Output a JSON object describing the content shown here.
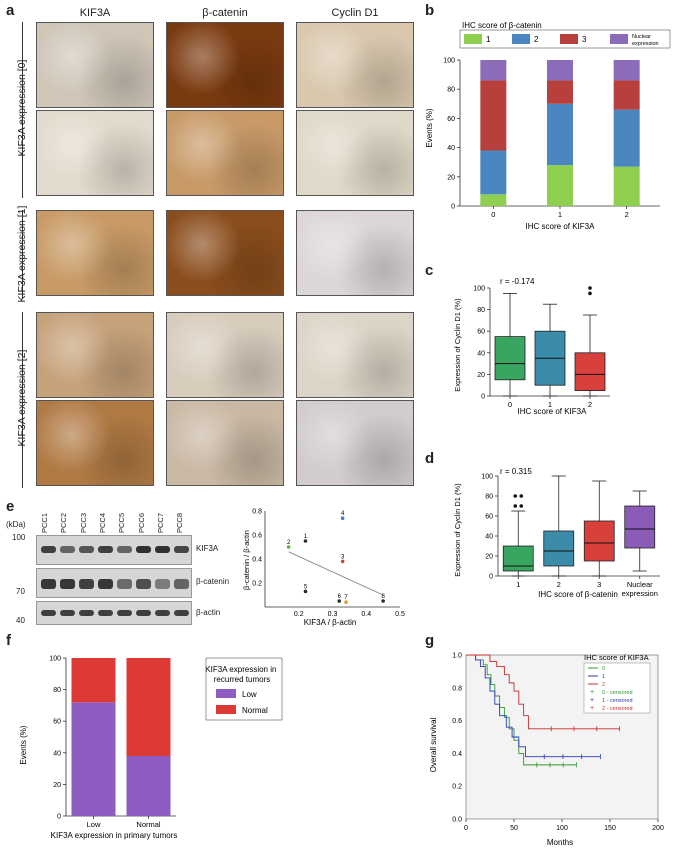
{
  "panels": {
    "a": "a",
    "b": "b",
    "c": "c",
    "d": "d",
    "e": "e",
    "f": "f",
    "g": "g"
  },
  "panel_a": {
    "columns": [
      "KIF3A",
      "β-catenin",
      "Cyclin D1"
    ],
    "rows": [
      "KIF3A expression [0]",
      "KIF3A expression [1]",
      "KIF3A expression [2]"
    ],
    "tiles": [
      [
        "#cfc6b8",
        "#7a3a10",
        "#d9c8ae"
      ],
      [
        "#e2dacc",
        "#c89a68",
        "#e0d8c8"
      ],
      [
        "#c89a66",
        "#8a4d1c",
        "#dcd6d8"
      ],
      [
        "#c6a27a",
        "#d8ccbc",
        "#dcd4c6"
      ],
      [
        "#b07a44",
        "#c9b8a4",
        "#d2cccc"
      ]
    ]
  },
  "panel_e_blot": {
    "kda_label": "(kDa)",
    "lanes": [
      "PCC1",
      "PCC2",
      "PCC3",
      "PCC4",
      "PCC5",
      "PCC6",
      "PCC7",
      "PCC8"
    ],
    "bands": [
      "KIF3A",
      "β-catenin",
      "β-actin"
    ],
    "markers": [
      "100",
      "70",
      "40"
    ]
  },
  "chart_data": [
    {
      "id": "b",
      "type": "bar",
      "stacked": true,
      "title": "IHC score of β-catenin",
      "legend": [
        "1",
        "2",
        "3",
        "Nuclear expression"
      ],
      "colors": [
        "#8fcf50",
        "#4a86c0",
        "#b8403c",
        "#8a6cb8"
      ],
      "categories": [
        "0",
        "1",
        "2"
      ],
      "series": [
        {
          "name": "1",
          "values": [
            8,
            28,
            27
          ]
        },
        {
          "name": "2",
          "values": [
            30,
            42,
            39
          ]
        },
        {
          "name": "3",
          "values": [
            48,
            16,
            20
          ]
        },
        {
          "name": "Nuclear expression",
          "values": [
            14,
            14,
            14
          ]
        }
      ],
      "xlabel": "IHC score of KIF3A",
      "ylabel": "Events (%)",
      "ylim": [
        0,
        100
      ],
      "yticks": [
        "0",
        "20",
        "40",
        "60",
        "80",
        "100"
      ]
    },
    {
      "id": "c",
      "type": "box",
      "annotation": "r = -0.174",
      "categories": [
        "0",
        "1",
        "2"
      ],
      "colors": [
        "#3aa560",
        "#3a8ca8",
        "#d8403c"
      ],
      "boxes": [
        {
          "min": 0,
          "q1": 15,
          "median": 30,
          "q3": 55,
          "max": 95,
          "outliers": []
        },
        {
          "min": 0,
          "q1": 10,
          "median": 35,
          "q3": 60,
          "max": 85,
          "outliers": []
        },
        {
          "min": 0,
          "q1": 5,
          "median": 20,
          "q3": 40,
          "max": 75,
          "outliers": [
            95,
            100
          ]
        }
      ],
      "xlabel": "IHC score of KIF3A",
      "ylabel": "Expression of Cyclin D1 (%)",
      "ylim": [
        0,
        100
      ],
      "yticks": [
        "0",
        "20",
        "40",
        "60",
        "80",
        "100"
      ]
    },
    {
      "id": "d",
      "type": "box",
      "annotation": "r = 0.315",
      "categories": [
        "1",
        "2",
        "3",
        "Nuclear expression"
      ],
      "colors": [
        "#3aa560",
        "#3a8ca8",
        "#d8403c",
        "#8a5cb8"
      ],
      "boxes": [
        {
          "min": 0,
          "q1": 5,
          "median": 10,
          "q3": 30,
          "max": 65,
          "outliers": [
            70,
            70,
            80,
            80
          ]
        },
        {
          "min": 0,
          "q1": 10,
          "median": 25,
          "q3": 45,
          "max": 100,
          "outliers": []
        },
        {
          "min": 0,
          "q1": 15,
          "median": 33,
          "q3": 55,
          "max": 95,
          "outliers": []
        },
        {
          "min": 5,
          "q1": 28,
          "median": 47,
          "q3": 70,
          "max": 85,
          "outliers": []
        }
      ],
      "xlabel": "IHC score of β-catenin",
      "ylabel": "Expression of Cyclin D1 (%)",
      "ylim": [
        0,
        100
      ],
      "yticks": [
        "0",
        "20",
        "40",
        "60",
        "80",
        "100"
      ]
    },
    {
      "id": "e",
      "type": "scatter",
      "points": [
        {
          "label": "1",
          "x": 0.22,
          "y": 0.55,
          "color": "#2a2a2a"
        },
        {
          "label": "2",
          "x": 0.17,
          "y": 0.5,
          "color": "#5ab040"
        },
        {
          "label": "3",
          "x": 0.33,
          "y": 0.38,
          "color": "#d8402c"
        },
        {
          "label": "4",
          "x": 0.33,
          "y": 0.74,
          "color": "#4a7ad8"
        },
        {
          "label": "5",
          "x": 0.22,
          "y": 0.13,
          "color": "#2a2a2a"
        },
        {
          "label": "6",
          "x": 0.32,
          "y": 0.05,
          "color": "#2a2a2a"
        },
        {
          "label": "7",
          "x": 0.34,
          "y": 0.04,
          "color": "#d8a030"
        },
        {
          "label": "8",
          "x": 0.45,
          "y": 0.05,
          "color": "#2a2a2a"
        }
      ],
      "trend": [
        [
          0.17,
          0.46
        ],
        [
          0.45,
          0.1
        ]
      ],
      "xlabel": "KIF3A / β-actin",
      "ylabel": "β-catenin / β-actin",
      "xlim": [
        0.1,
        0.5
      ],
      "ylim": [
        0,
        0.8
      ],
      "xticks": [
        "0.2",
        "0.3",
        "0.4",
        "0.5"
      ],
      "yticks": [
        "0.2",
        "0.4",
        "0.6",
        "0.8"
      ]
    },
    {
      "id": "f",
      "type": "bar",
      "stacked": true,
      "legend_title": "KIF3A expression in recurred tumors",
      "legend": [
        "Low",
        "Normal"
      ],
      "colors": [
        "#8e5cc0",
        "#dd3a36"
      ],
      "categories": [
        "Low",
        "Normal"
      ],
      "series": [
        {
          "name": "Low",
          "values": [
            72,
            38
          ]
        },
        {
          "name": "Normal",
          "values": [
            28,
            62
          ]
        }
      ],
      "xlabel": "KIF3A expression in primary tumors",
      "ylabel": "Events (%)",
      "ylim": [
        0,
        100
      ],
      "yticks": [
        "0",
        "20",
        "40",
        "60",
        "80",
        "100"
      ]
    },
    {
      "id": "g",
      "type": "line",
      "legend_title": "IHC score of KIF3A",
      "legend": [
        "0",
        "1",
        "2",
        "0 - censored",
        "1 - censored",
        "2 - censored"
      ],
      "colors": [
        "#2e9a2e",
        "#2a3ab8",
        "#cc2a2a"
      ],
      "series": [
        {
          "name": "0",
          "points": [
            [
              0,
              1
            ],
            [
              10,
              0.97
            ],
            [
              18,
              0.94
            ],
            [
              22,
              0.88
            ],
            [
              26,
              0.82
            ],
            [
              30,
              0.75
            ],
            [
              35,
              0.68
            ],
            [
              40,
              0.62
            ],
            [
              45,
              0.55
            ],
            [
              50,
              0.48
            ],
            [
              55,
              0.4
            ],
            [
              60,
              0.33
            ],
            [
              115,
              0.33
            ]
          ]
        },
        {
          "name": "1",
          "points": [
            [
              0,
              1
            ],
            [
              10,
              0.97
            ],
            [
              15,
              0.93
            ],
            [
              20,
              0.86
            ],
            [
              25,
              0.78
            ],
            [
              30,
              0.7
            ],
            [
              35,
              0.63
            ],
            [
              42,
              0.56
            ],
            [
              48,
              0.5
            ],
            [
              55,
              0.44
            ],
            [
              62,
              0.38
            ],
            [
              140,
              0.38
            ]
          ]
        },
        {
          "name": "2",
          "points": [
            [
              0,
              1
            ],
            [
              18,
              1
            ],
            [
              25,
              0.96
            ],
            [
              32,
              0.93
            ],
            [
              40,
              0.88
            ],
            [
              45,
              0.83
            ],
            [
              50,
              0.78
            ],
            [
              55,
              0.7
            ],
            [
              60,
              0.63
            ],
            [
              65,
              0.55
            ],
            [
              160,
              0.55
            ]
          ]
        }
      ],
      "xlabel": "Months",
      "ylabel": "Overall survival",
      "xlim": [
        0,
        200
      ],
      "ylim": [
        0,
        1
      ],
      "xticks": [
        "0",
        "50",
        "100",
        "150",
        "200"
      ],
      "yticks": [
        "0.0",
        "0.2",
        "0.4",
        "0.6",
        "0.8",
        "1.0"
      ]
    }
  ]
}
